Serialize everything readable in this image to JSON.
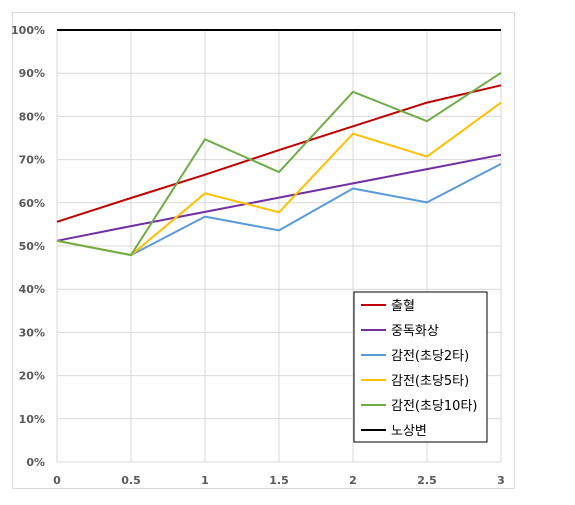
{
  "chart_data": {
    "type": "line",
    "x": [
      0,
      0.5,
      1,
      1.5,
      2,
      2.5,
      3
    ],
    "x_tick_labels": [
      "0",
      "0.5",
      "1",
      "1.5",
      "2",
      "2.5",
      "3"
    ],
    "y_tick_labels": [
      "0%",
      "10%",
      "20%",
      "30%",
      "40%",
      "50%",
      "60%",
      "70%",
      "80%",
      "90%",
      "100%"
    ],
    "ylim": [
      0,
      100
    ],
    "xlim": [
      0,
      3
    ],
    "grid": true,
    "legend_position": "bottom-right",
    "series": [
      {
        "name": "출혈",
        "color": "#c00000",
        "values": [
          55.6,
          61.1,
          66.5,
          72.2,
          77.7,
          83.2,
          87.2
        ]
      },
      {
        "name": "중독화상",
        "color": "#7030a0",
        "values": [
          51.2,
          54.6,
          57.9,
          61.2,
          64.5,
          67.8,
          71.1
        ]
      },
      {
        "name": "감전(초당2타)",
        "color": "#5b9bd5",
        "values": [
          51.2,
          47.9,
          56.8,
          53.6,
          63.3,
          60.1,
          69.0
        ]
      },
      {
        "name": "감전(초당5타)",
        "color": "#ffc000",
        "values": [
          51.2,
          47.9,
          62.2,
          57.8,
          76.0,
          70.7,
          83.2
        ]
      },
      {
        "name": "감전(초당10타)",
        "color": "#70ad47",
        "values": [
          51.2,
          47.9,
          74.7,
          67.1,
          85.7,
          78.9,
          90.1
        ]
      },
      {
        "name": "노상변",
        "color": "#000000",
        "values": [
          100,
          100,
          100,
          100,
          100,
          100,
          100
        ]
      }
    ]
  }
}
